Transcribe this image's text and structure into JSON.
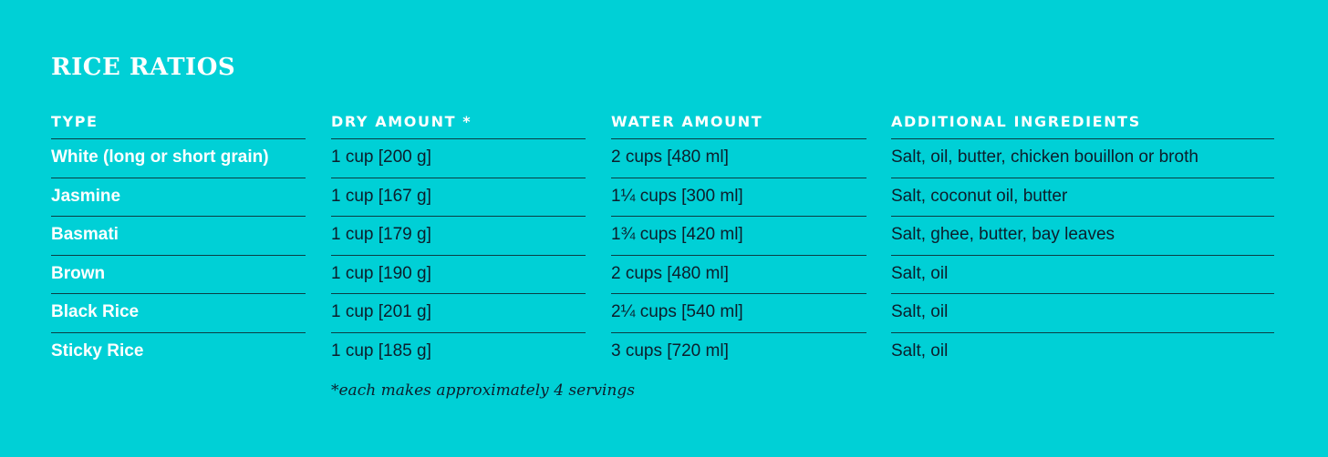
{
  "title": "RICE RATIOS",
  "columns": [
    "TYPE",
    "DRY AMOUNT *",
    "WATER AMOUNT",
    "ADDITIONAL INGREDIENTS"
  ],
  "rows": [
    [
      "White (long or short grain)",
      "1 cup [200 g]",
      "2 cups [480 ml]",
      "Salt, oil, butter, chicken bouillon or broth"
    ],
    [
      "Jasmine",
      "1 cup [167 g]",
      "1¼ cups [300 ml]",
      "Salt, coconut oil, butter"
    ],
    [
      "Basmati",
      "1 cup [179 g]",
      "1¾ cups [420 ml]",
      "Salt, ghee, butter, bay leaves"
    ],
    [
      "Brown",
      "1 cup [190 g]",
      "2 cups [480 ml]",
      "Salt, oil"
    ],
    [
      "Black Rice",
      "1 cup [201 g]",
      "2¼ cups [540 ml]",
      "Salt, oil"
    ],
    [
      "Sticky Rice",
      "1 cup [185 g]",
      "3 cups [720 ml]",
      "Salt, oil"
    ]
  ],
  "footnote": "*each makes approximately 4 servings",
  "colors": {
    "background": "#00d0d6",
    "heading_text": "#ffffff",
    "body_text": "#0c1e2c",
    "rule": "#0a3e44"
  }
}
